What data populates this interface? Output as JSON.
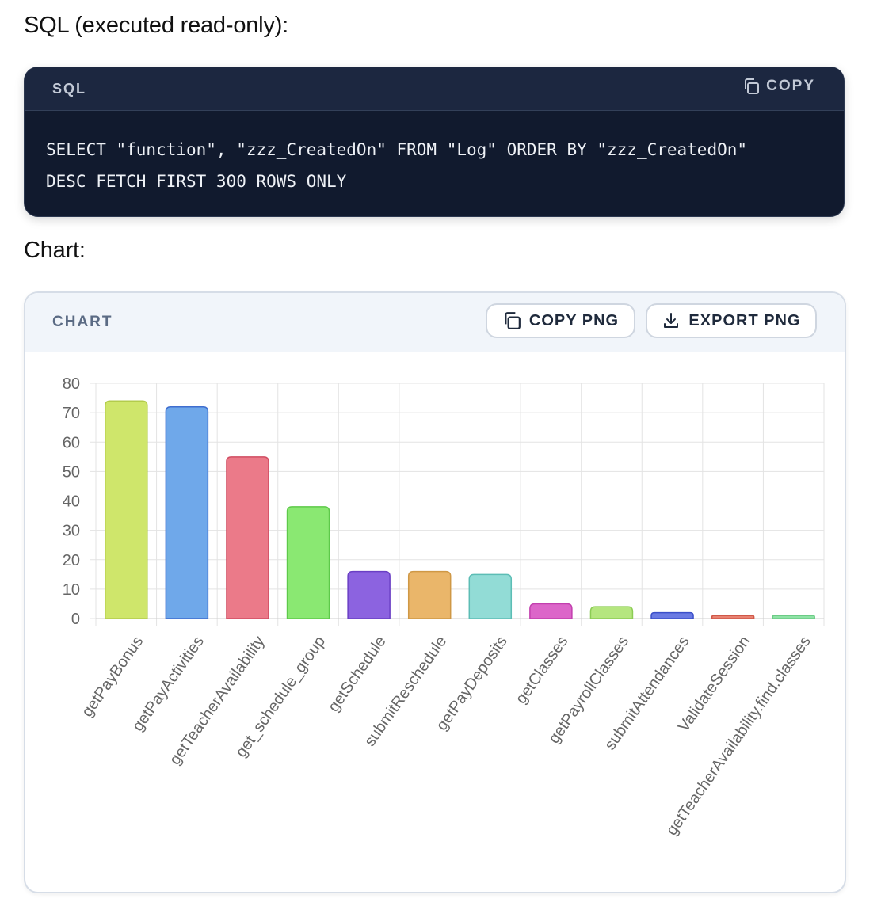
{
  "sql_section": {
    "label": "SQL (executed read-only):",
    "lang": "SQL",
    "copy_label": "COPY",
    "code_lines": [
      "SELECT \"function\", \"zzz_CreatedOn\" FROM \"Log\" ORDER BY \"zzz_CreatedOn\"",
      "DESC FETCH FIRST 300 ROWS ONLY"
    ]
  },
  "chart_section": {
    "label": "Chart:",
    "title": "CHART",
    "copy_png_label": "COPY PNG",
    "export_png_label": "EXPORT PNG"
  },
  "chart_data": {
    "type": "bar",
    "categories": [
      "getPayBonus",
      "getPayActivities",
      "getTeacherAvailability",
      "get_schedule_group",
      "getSchedule",
      "submitReschedule",
      "getPayDeposits",
      "getClasses",
      "getPayrollClasses",
      "submitAttendances",
      "ValidateSession",
      "getTeacherAvailability.find.classes"
    ],
    "values": [
      74,
      72,
      55,
      38,
      16,
      16,
      15,
      5,
      4,
      2,
      1,
      1
    ],
    "colors": [
      "#cfe66b",
      "#6fa8ea",
      "#eb7a89",
      "#8ae872",
      "#8c63e0",
      "#eab66a",
      "#92dcd6",
      "#dc66c9",
      "#b5e67f",
      "#6a7ae3",
      "#e88272",
      "#8fe3a6"
    ],
    "borders": [
      "#b3cc4c",
      "#3f6ecf",
      "#d14d62",
      "#5ec94a",
      "#6a3fc4",
      "#cf9845",
      "#5cbdb5",
      "#c23fae",
      "#8ccc55",
      "#3b4fc9",
      "#cf5848",
      "#6ccb86"
    ],
    "yticks": [
      0,
      10,
      20,
      30,
      40,
      50,
      60,
      70,
      80
    ],
    "ylim": [
      0,
      80
    ],
    "grid": true,
    "legend": "none"
  }
}
